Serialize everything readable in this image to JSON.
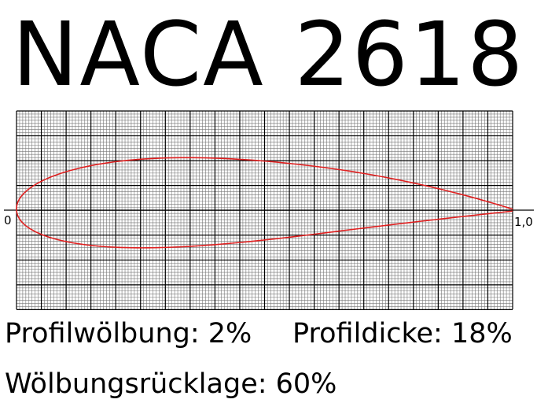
{
  "title": "NACA 2618",
  "profile": {
    "designation": "2618",
    "camber": 0.02,
    "camber_position": 0.6,
    "thickness": 0.18
  },
  "axis": {
    "start_label": "0",
    "end_label": "1,0"
  },
  "info": {
    "camber_text": "Profilwölbung: 2%",
    "thickness_text": "Profildicke: 18%",
    "position_text": "Wölbungsrücklage: 60%"
  },
  "colors": {
    "profile": "#e02020",
    "grid_major": "#000000",
    "grid_minor": "#777777"
  }
}
